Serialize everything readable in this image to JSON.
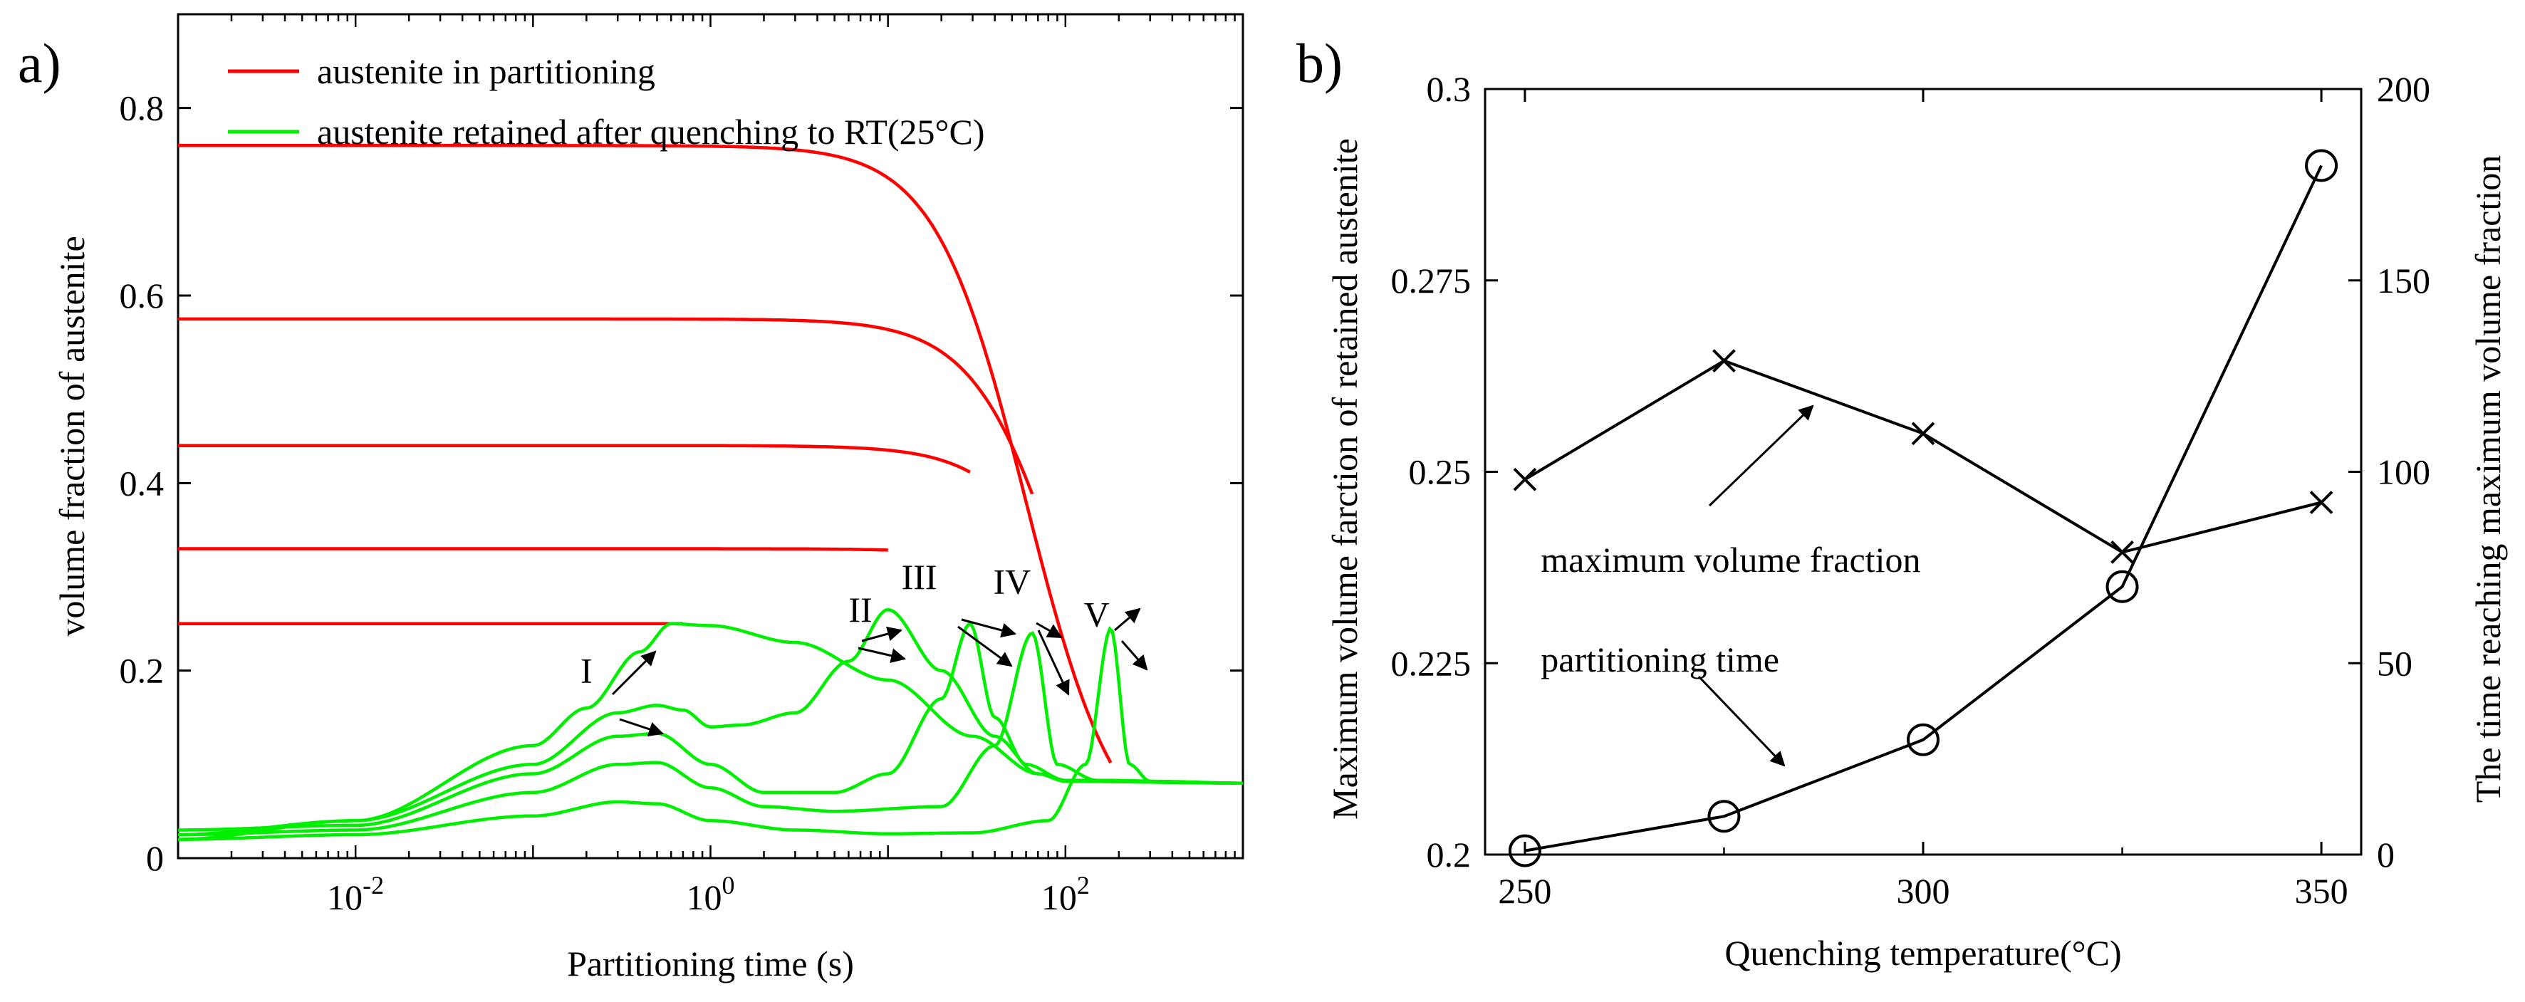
{
  "panel_labels": {
    "a": "a)",
    "b": "b)"
  },
  "chart_data": [
    {
      "type": "line",
      "panel": "a)",
      "title": "",
      "xlabel": "Partitioning time (s)",
      "ylabel": "volume fraction of austenite",
      "xscale": "log",
      "xlim": [
        0.001,
        1000
      ],
      "ylim": [
        0,
        0.9
      ],
      "xticks": [
        {
          "value": 0.01,
          "base": "10",
          "exp": "-2"
        },
        {
          "value": 1,
          "base": "10",
          "exp": "0"
        },
        {
          "value": 100,
          "base": "10",
          "exp": "2"
        }
      ],
      "yticks": [
        0,
        0.2,
        0.4,
        0.6,
        0.8
      ],
      "legend": {
        "position": "top-left",
        "entries": [
          {
            "label": "austenite in partitioning",
            "color": "#ff0000"
          },
          {
            "label": "austenite retained after quenching to RT(25°C)",
            "color": "#00ee00"
          }
        ]
      },
      "red_color": "#ff0000",
      "green_color": "#00ee00",
      "series": [
        {
          "name": "I",
          "red": {
            "plateau": 0.25,
            "t_half": 10000,
            "n": 1.7,
            "end_time": 0.7
          },
          "green": [
            [
              0.001,
              0.02
            ],
            [
              0.01,
              0.04
            ],
            [
              0.1,
              0.12
            ],
            [
              0.2,
              0.16
            ],
            [
              0.4,
              0.22
            ],
            [
              0.6,
              0.25
            ],
            [
              1,
              0.248
            ],
            [
              3,
              0.23
            ],
            [
              10,
              0.19
            ],
            [
              30,
              0.13
            ],
            [
              70,
              0.09
            ],
            [
              100,
              0.082
            ],
            [
              1000,
              0.08
            ]
          ]
        },
        {
          "name": "II",
          "red": {
            "plateau": 0.33,
            "t_half": 240,
            "n": 1.7,
            "end_time": 10
          },
          "green": [
            [
              0.001,
              0.025
            ],
            [
              0.01,
              0.04
            ],
            [
              0.1,
              0.1
            ],
            [
              0.3,
              0.155
            ],
            [
              0.5,
              0.163
            ],
            [
              0.7,
              0.158
            ],
            [
              1,
              0.14
            ],
            [
              1.5,
              0.142
            ],
            [
              3,
              0.155
            ],
            [
              6,
              0.21
            ],
            [
              10,
              0.265
            ],
            [
              20,
              0.2
            ],
            [
              40,
              0.13
            ],
            [
              70,
              0.09
            ],
            [
              100,
              0.082
            ],
            [
              1000,
              0.08
            ]
          ]
        },
        {
          "name": "III",
          "red": {
            "plateau": 0.44,
            "t_half": 140,
            "n": 1.7,
            "end_time": 29
          },
          "green": [
            [
              0.001,
              0.03
            ],
            [
              0.01,
              0.035
            ],
            [
              0.1,
              0.09
            ],
            [
              0.3,
              0.13
            ],
            [
              0.5,
              0.133
            ],
            [
              1,
              0.1
            ],
            [
              2,
              0.07
            ],
            [
              5,
              0.07
            ],
            [
              10,
              0.09
            ],
            [
              20,
              0.17
            ],
            [
              29,
              0.25
            ],
            [
              40,
              0.15
            ],
            [
              60,
              0.1
            ],
            [
              100,
              0.083
            ],
            [
              1000,
              0.08
            ]
          ]
        },
        {
          "name": "IV",
          "red": {
            "plateau": 0.575,
            "t_half": 100,
            "n": 1.7,
            "end_time": 65
          },
          "green": [
            [
              0.001,
              0.025
            ],
            [
              0.01,
              0.03
            ],
            [
              0.1,
              0.07
            ],
            [
              0.3,
              0.1
            ],
            [
              0.5,
              0.102
            ],
            [
              1,
              0.075
            ],
            [
              2,
              0.055
            ],
            [
              5,
              0.05
            ],
            [
              20,
              0.055
            ],
            [
              40,
              0.12
            ],
            [
              65,
              0.24
            ],
            [
              90,
              0.1
            ],
            [
              150,
              0.083
            ],
            [
              1000,
              0.08
            ]
          ]
        },
        {
          "name": "V",
          "red": {
            "plateau": 0.76,
            "t_half": 60,
            "n": 1.7,
            "end_time": 180
          },
          "green": [
            [
              0.001,
              0.02
            ],
            [
              0.01,
              0.025
            ],
            [
              0.1,
              0.045
            ],
            [
              0.3,
              0.06
            ],
            [
              0.5,
              0.058
            ],
            [
              1,
              0.04
            ],
            [
              3,
              0.03
            ],
            [
              10,
              0.026
            ],
            [
              30,
              0.027
            ],
            [
              80,
              0.04
            ],
            [
              130,
              0.1
            ],
            [
              180,
              0.245
            ],
            [
              230,
              0.1
            ],
            [
              300,
              0.082
            ],
            [
              1000,
              0.08
            ]
          ]
        }
      ],
      "annotations": [
        {
          "label": "I",
          "x": 0.2,
          "y": 0.2
        },
        {
          "label": "II",
          "x": 7,
          "y": 0.265
        },
        {
          "label": "III",
          "x": 15,
          "y": 0.3
        },
        {
          "label": "IV",
          "x": 50,
          "y": 0.295
        },
        {
          "label": "V",
          "x": 150,
          "y": 0.26
        }
      ]
    },
    {
      "type": "line",
      "panel": "b)",
      "title": "",
      "xlabel": "Quenching temperature(°C)",
      "ylabel_left": "Maximum volume farction of retained austenite",
      "ylabel_right": "The time reaching maximum volume fraction",
      "x": [
        250,
        275,
        300,
        325,
        350
      ],
      "xlim": [
        245,
        355
      ],
      "xticks": [
        250,
        300,
        350
      ],
      "ylim_left": [
        0.2,
        0.3
      ],
      "yticks_left": [
        "0.2",
        "0.225",
        "0.25",
        "0.275",
        "0.3"
      ],
      "ylim_right": [
        0,
        200
      ],
      "yticks_right": [
        "0",
        "50",
        "100",
        "150",
        "200"
      ],
      "series": [
        {
          "name": "maximum volume fraction",
          "axis": "left",
          "marker": "x",
          "values": [
            0.249,
            0.2645,
            0.255,
            0.2395,
            0.246
          ]
        },
        {
          "name": "partitioning time",
          "axis": "right",
          "marker": "o",
          "values": [
            1,
            10,
            30,
            70,
            180
          ]
        }
      ],
      "annotations": [
        {
          "label": "maximum volume fraction",
          "x": 252,
          "y": 0.2385
        },
        {
          "label": "partitioning time",
          "x": 252,
          "y": 0.2255
        }
      ]
    }
  ]
}
